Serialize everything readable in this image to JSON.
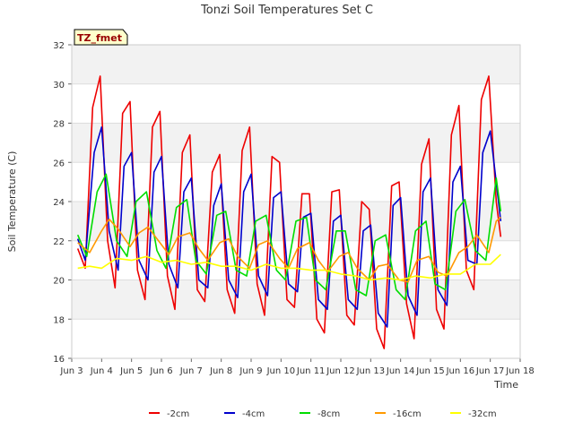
{
  "chart_data": {
    "type": "line",
    "title": "Tonzi Soil Temperatures Set C",
    "xlabel": "Time",
    "ylabel": "Soil Temperature (C)",
    "annotation": "TZ_fmet",
    "xlim": [
      3,
      18
    ],
    "ylim": [
      16,
      32
    ],
    "grid": "horizontal bands",
    "legend_position": "bottom",
    "x_ticks": [
      {
        "value": 3,
        "label": "Jun 3"
      },
      {
        "value": 4,
        "label": "Jun 4"
      },
      {
        "value": 5,
        "label": "Jun 5"
      },
      {
        "value": 6,
        "label": "Jun 6"
      },
      {
        "value": 7,
        "label": "Jun 7"
      },
      {
        "value": 8,
        "label": "Jun 8"
      },
      {
        "value": 9,
        "label": "Jun 9"
      },
      {
        "value": 10,
        "label": "Jun 10"
      },
      {
        "value": 11,
        "label": "Jun 11"
      },
      {
        "value": 12,
        "label": "Jun 12"
      },
      {
        "value": 13,
        "label": "Jun 13"
      },
      {
        "value": 14,
        "label": "Jun 14"
      },
      {
        "value": 15,
        "label": "Jun 15"
      },
      {
        "value": 16,
        "label": "Jun 16"
      },
      {
        "value": 17,
        "label": "Jun 17"
      },
      {
        "value": 18,
        "label": "Jun 18"
      }
    ],
    "y_ticks": [
      16,
      18,
      20,
      22,
      24,
      26,
      28,
      30,
      32
    ],
    "series": [
      {
        "name": "-2cm",
        "color": "#ee0000",
        "x": [
          3.2,
          3.45,
          3.7,
          3.95,
          4.2,
          4.45,
          4.7,
          4.95,
          5.2,
          5.45,
          5.7,
          5.95,
          6.2,
          6.45,
          6.7,
          6.95,
          7.2,
          7.45,
          7.7,
          7.95,
          8.2,
          8.45,
          8.7,
          8.95,
          9.2,
          9.45,
          9.7,
          9.95,
          10.2,
          10.45,
          10.7,
          10.95,
          11.2,
          11.45,
          11.7,
          11.95,
          12.2,
          12.45,
          12.7,
          12.95,
          13.2,
          13.45,
          13.7,
          13.95,
          14.2,
          14.45,
          14.7,
          14.95,
          15.2,
          15.45,
          15.7,
          15.95,
          16.2,
          16.45,
          16.7,
          16.95,
          17.2,
          17.35
        ],
        "y": [
          21.6,
          20.6,
          28.8,
          30.4,
          22.0,
          19.6,
          28.5,
          29.1,
          20.5,
          19.0,
          27.8,
          28.6,
          20.2,
          18.5,
          26.5,
          27.4,
          19.5,
          18.9,
          25.5,
          26.4,
          19.5,
          18.3,
          26.6,
          27.8,
          19.8,
          18.2,
          26.3,
          26.0,
          19.0,
          18.6,
          24.4,
          24.4,
          18.0,
          17.3,
          24.5,
          24.6,
          18.2,
          17.7,
          24.0,
          23.6,
          17.5,
          16.5,
          24.8,
          25.0,
          18.8,
          17.0,
          25.9,
          27.2,
          18.5,
          17.5,
          27.4,
          28.9,
          20.5,
          19.5,
          29.2,
          30.4,
          24.0,
          22.2
        ]
      },
      {
        "name": "-4cm",
        "color": "#0000cc",
        "x": [
          3.2,
          3.45,
          3.75,
          4.0,
          4.25,
          4.55,
          4.75,
          5.0,
          5.25,
          5.55,
          5.75,
          6.0,
          6.25,
          6.55,
          6.75,
          7.0,
          7.25,
          7.55,
          7.75,
          8.0,
          8.25,
          8.55,
          8.75,
          9.0,
          9.25,
          9.55,
          9.75,
          10.0,
          10.25,
          10.55,
          10.75,
          11.0,
          11.25,
          11.55,
          11.75,
          12.0,
          12.25,
          12.55,
          12.75,
          13.0,
          13.25,
          13.55,
          13.75,
          14.0,
          14.25,
          14.55,
          14.75,
          15.0,
          15.25,
          15.55,
          15.75,
          16.0,
          16.25,
          16.55,
          16.75,
          17.0,
          17.35
        ],
        "y": [
          22.1,
          21.0,
          26.5,
          27.8,
          22.5,
          20.5,
          25.8,
          26.5,
          21.0,
          20.0,
          25.5,
          26.3,
          20.8,
          19.6,
          24.5,
          25.2,
          20.0,
          19.6,
          23.8,
          24.9,
          20.0,
          19.1,
          24.5,
          25.4,
          20.2,
          19.2,
          24.2,
          24.5,
          19.8,
          19.4,
          23.2,
          23.4,
          19.0,
          18.5,
          23.0,
          23.3,
          19.0,
          18.5,
          22.5,
          22.8,
          18.3,
          17.6,
          23.8,
          24.2,
          19.2,
          18.2,
          24.5,
          25.2,
          19.5,
          18.7,
          25.0,
          25.8,
          21.0,
          20.8,
          26.5,
          27.6,
          23.0
        ]
      },
      {
        "name": "-8cm",
        "color": "#00dd00",
        "x": [
          3.2,
          3.5,
          3.85,
          4.15,
          4.5,
          4.85,
          5.15,
          5.5,
          5.85,
          6.15,
          6.5,
          6.85,
          7.15,
          7.5,
          7.85,
          8.15,
          8.5,
          8.85,
          9.15,
          9.5,
          9.85,
          10.15,
          10.5,
          10.85,
          11.15,
          11.5,
          11.85,
          12.15,
          12.5,
          12.85,
          13.15,
          13.5,
          13.85,
          14.15,
          14.5,
          14.85,
          15.15,
          15.5,
          15.85,
          16.15,
          16.5,
          16.85,
          17.2,
          17.35
        ],
        "y": [
          22.3,
          21.2,
          24.5,
          25.4,
          22.0,
          21.2,
          24.0,
          24.5,
          21.5,
          20.6,
          23.7,
          24.1,
          21.0,
          20.3,
          23.3,
          23.5,
          20.5,
          20.2,
          23.0,
          23.3,
          20.5,
          20.0,
          23.0,
          23.2,
          20.0,
          19.5,
          22.5,
          22.5,
          19.5,
          19.2,
          22.0,
          22.3,
          19.5,
          19.0,
          22.5,
          23.0,
          19.8,
          19.5,
          23.5,
          24.1,
          21.5,
          21.0,
          25.2,
          23.5
        ]
      },
      {
        "name": "-16cm",
        "color": "#ff9900",
        "x": [
          3.2,
          3.6,
          4.0,
          4.25,
          4.55,
          4.95,
          5.25,
          5.55,
          5.95,
          6.25,
          6.55,
          6.95,
          7.25,
          7.55,
          7.95,
          8.25,
          8.55,
          8.95,
          9.25,
          9.55,
          9.95,
          10.25,
          10.55,
          10.95,
          11.25,
          11.55,
          11.95,
          12.25,
          12.55,
          12.95,
          13.25,
          13.55,
          13.95,
          14.25,
          14.55,
          14.95,
          15.25,
          15.55,
          15.95,
          16.25,
          16.55,
          16.95,
          17.2,
          17.35
        ],
        "y": [
          21.9,
          21.4,
          22.5,
          23.1,
          22.6,
          21.7,
          22.4,
          22.7,
          21.9,
          21.3,
          22.2,
          22.4,
          21.6,
          21.0,
          21.9,
          22.1,
          21.2,
          20.6,
          21.8,
          22.0,
          21.1,
          20.6,
          21.6,
          21.9,
          21.0,
          20.4,
          21.2,
          21.4,
          20.6,
          20.0,
          20.7,
          20.8,
          20.0,
          19.9,
          21.0,
          21.2,
          20.4,
          20.2,
          21.4,
          21.7,
          22.3,
          21.4,
          23.0,
          23.2
        ]
      },
      {
        "name": "-32cm",
        "color": "#ffff00",
        "x": [
          3.2,
          3.6,
          4.0,
          4.5,
          5.0,
          5.5,
          6.0,
          6.5,
          7.0,
          7.5,
          8.0,
          8.5,
          9.0,
          9.5,
          10.0,
          10.5,
          11.0,
          11.5,
          12.0,
          12.5,
          13.0,
          13.5,
          14.0,
          14.5,
          15.0,
          15.5,
          16.0,
          16.5,
          17.0,
          17.35
        ],
        "y": [
          20.6,
          20.7,
          20.6,
          21.1,
          21.0,
          21.2,
          20.9,
          21.0,
          20.8,
          20.9,
          20.7,
          20.7,
          20.5,
          20.8,
          20.6,
          20.6,
          20.5,
          20.5,
          20.3,
          20.2,
          20.0,
          20.1,
          20.0,
          20.2,
          20.1,
          20.3,
          20.3,
          20.8,
          20.8,
          21.3
        ]
      }
    ]
  }
}
